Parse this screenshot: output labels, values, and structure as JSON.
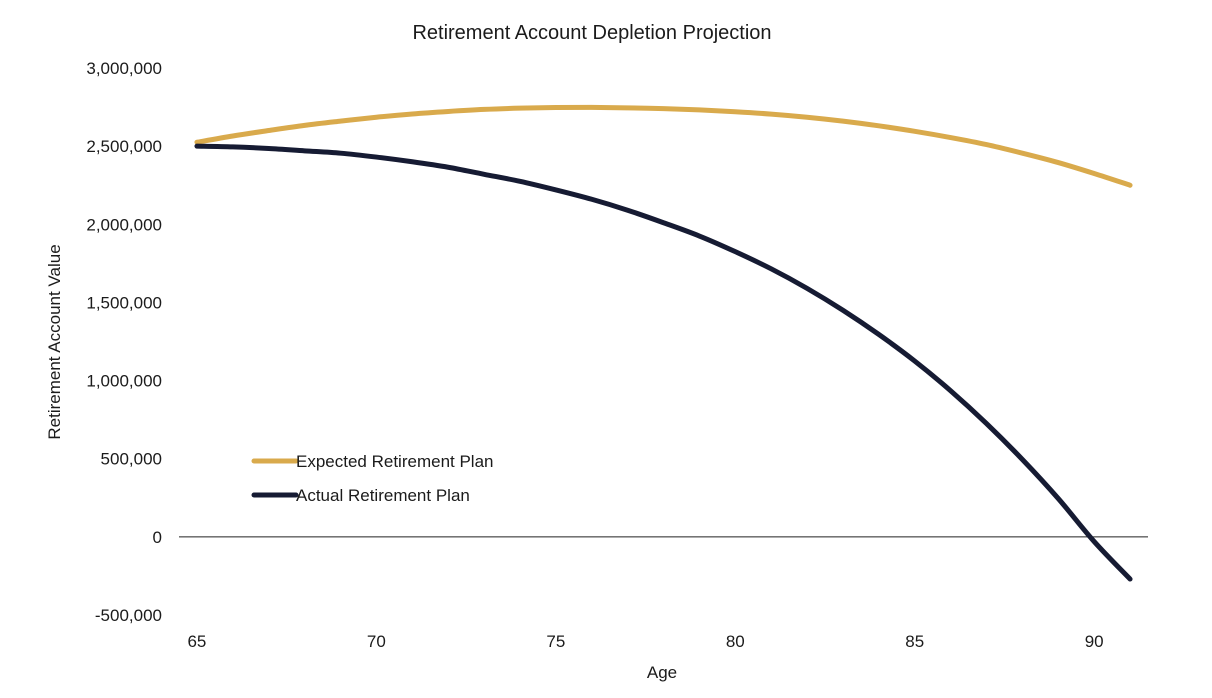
{
  "chart_data": {
    "type": "line",
    "title": "Retirement Account Depletion Projection",
    "xlabel": "Age",
    "ylabel": "Retirement Account Value",
    "x": [
      65,
      66,
      67,
      68,
      69,
      70,
      71,
      72,
      73,
      74,
      75,
      76,
      77,
      78,
      79,
      80,
      81,
      82,
      83,
      84,
      85,
      86,
      87,
      88,
      89,
      90,
      91
    ],
    "xlim": [
      64.5,
      91.5
    ],
    "ylim": [
      -500000,
      3000000
    ],
    "xticks": [
      "65",
      "70",
      "75",
      "80",
      "85",
      "90"
    ],
    "yticks": [
      "-500,000",
      "0",
      "500,000",
      "1,000,000",
      "1,500,000",
      "2,000,000",
      "2,500,000",
      "3,000,000"
    ],
    "grid": false,
    "legend": "lower-left",
    "series": [
      {
        "name": "Expected Retirement Plan",
        "color": "#d9aa4c",
        "values": [
          2525000,
          2565000,
          2600000,
          2633000,
          2660000,
          2685000,
          2706000,
          2722000,
          2735000,
          2743000,
          2747000,
          2748000,
          2745000,
          2740000,
          2732000,
          2720000,
          2705000,
          2685000,
          2660000,
          2630000,
          2595000,
          2555000,
          2510000,
          2455000,
          2395000,
          2325000,
          2250000
        ]
      },
      {
        "name": "Actual Retirement Plan",
        "color": "#161b33",
        "values": [
          2500000,
          2495000,
          2485000,
          2470000,
          2455000,
          2430000,
          2400000,
          2365000,
          2320000,
          2275000,
          2220000,
          2160000,
          2090000,
          2010000,
          1925000,
          1825000,
          1715000,
          1590000,
          1450000,
          1295000,
          1125000,
          935000,
          725000,
          495000,
          245000,
          -30000,
          -270000
        ]
      }
    ]
  }
}
